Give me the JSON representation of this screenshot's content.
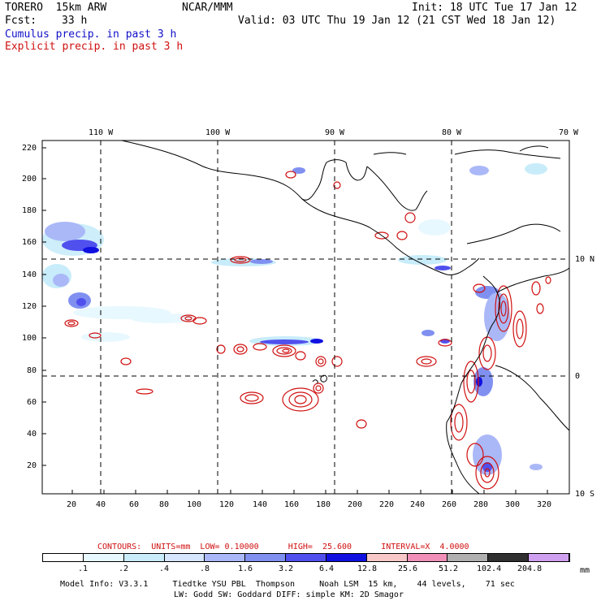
{
  "header": {
    "model": "TORERO  15km ARW",
    "org": "NCAR/MMM",
    "init": "Init: 18 UTC Tue 17 Jan 12",
    "fcst_label": "Fcst:",
    "fcst_value": "33 h",
    "valid": "Valid: 03 UTC Thu 19 Jan 12 (21 CST Wed 18 Jan 12)"
  },
  "legend_lines": {
    "cumulus": "Cumulus precip. in past 3 h",
    "explicit": "Explicit precip. in past 3 h"
  },
  "colors": {
    "cumulus": "#1010c8",
    "explicit": "#d01010",
    "grid": "#000000",
    "coast": "#000000"
  },
  "map": {
    "lon_labels": [
      "110 W",
      "100 W",
      "90 W",
      "80 W",
      "70 W"
    ],
    "lat_labels": [
      "10 N",
      "0",
      "10 S"
    ],
    "y_ticks": [
      "220",
      "200",
      "180",
      "160",
      "140",
      "120",
      "100",
      "80",
      "60",
      "40",
      "20"
    ],
    "x_ticks": [
      "20",
      "40",
      "60",
      "80",
      "100",
      "120",
      "140",
      "160",
      "180",
      "200",
      "220",
      "240",
      "260",
      "280",
      "300",
      "320"
    ]
  },
  "contours": {
    "text": "CONTOURS:  UNITS=mm  LOW= 0.10000      HIGH=  25.600      INTERVAL=X  4.0000"
  },
  "colorbar": {
    "labels": [
      ".1",
      ".2",
      ".4",
      ".8",
      "1.6",
      "3.2",
      "6.4",
      "12.8",
      "25.6",
      "51.2",
      "102.4",
      "204.8"
    ],
    "unit": "mm",
    "colors": [
      "#ffffff",
      "#e8f8ff",
      "#c8ecfa",
      "#d6e6ff",
      "#aab8f8",
      "#8090f0",
      "#5050ee",
      "#1010e0",
      "#f8c8c8",
      "#f090b8",
      "#b0b0b0",
      "#303030",
      "#d0a0f0"
    ]
  },
  "footer": {
    "line1": "Model Info: V3.3.1     Tiedtke YSU PBL  Thompson     Noah LSM  15 km,    44 levels,    71 sec",
    "line2": "LW: Godd SW: Goddard DIFF: simple KM: 2D Smagor"
  }
}
